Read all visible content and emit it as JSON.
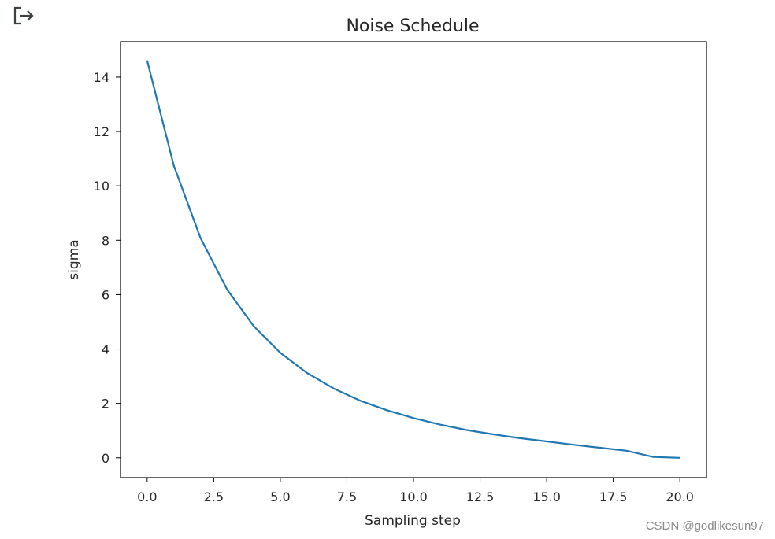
{
  "output_icon": "output-expand-icon",
  "watermark": "CSDN @godlikesun97",
  "chart_data": {
    "type": "line",
    "title": "Noise Schedule",
    "xlabel": "Sampling step",
    "ylabel": "sigma",
    "xlim": [
      -1,
      21
    ],
    "ylim": [
      -0.73,
      15.3
    ],
    "xticks": [
      "0.0",
      "2.5",
      "5.0",
      "7.5",
      "10.0",
      "12.5",
      "15.0",
      "17.5",
      "20.0"
    ],
    "yticks": [
      "0",
      "2",
      "4",
      "6",
      "8",
      "10",
      "12",
      "14"
    ],
    "grid": false,
    "color": "#1f77b4",
    "series": [
      {
        "x": [
          0,
          1,
          2,
          3,
          4,
          5,
          6,
          7,
          8,
          9,
          10,
          11,
          12,
          13,
          14,
          15,
          16,
          17,
          18,
          19,
          20
        ],
        "y": [
          14.61,
          10.75,
          8.09,
          6.19,
          4.84,
          3.86,
          3.12,
          2.55,
          2.1,
          1.75,
          1.46,
          1.22,
          1.02,
          0.86,
          0.72,
          0.6,
          0.48,
          0.37,
          0.26,
          0.03,
          0.0
        ]
      }
    ]
  }
}
